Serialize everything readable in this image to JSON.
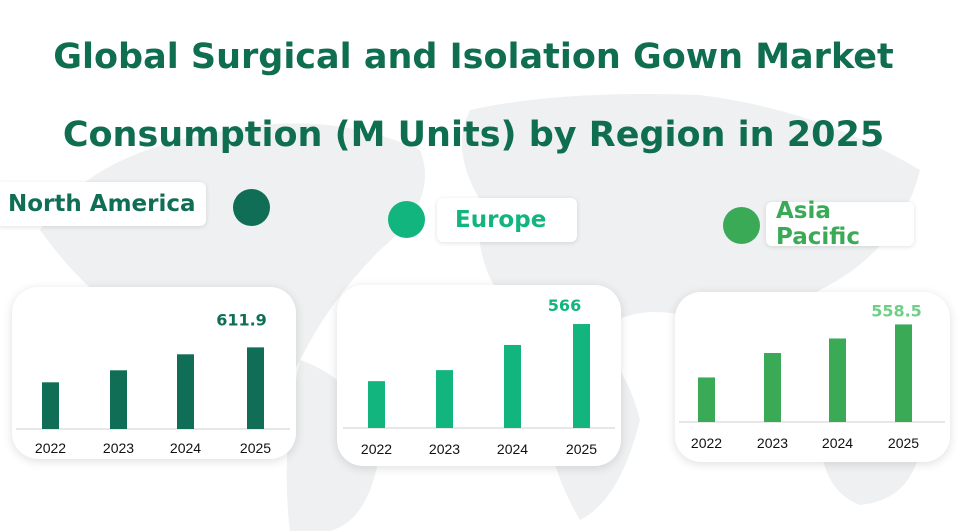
{
  "title": {
    "line1": "Global Surgical and Isolation Gown Market",
    "line2": "Consumption (M Units) by Region in 2025"
  },
  "colors": {
    "title": "#0f6e4f",
    "north_america": "#0f6e55",
    "europe": "#11b57d",
    "asia_pacific": "#3aaa57",
    "asia_pacific_value": "#6fcf86"
  },
  "regions": [
    {
      "key": "north_america",
      "label": "North America"
    },
    {
      "key": "europe",
      "label": "Europe"
    },
    {
      "key": "asia_pacific",
      "label": "Asia Pacific"
    }
  ],
  "chart_data": [
    {
      "type": "bar",
      "title": "North America",
      "categories": [
        "2022",
        "2023",
        "2024",
        "2025"
      ],
      "values": [
        350,
        440,
        560,
        611.9
      ],
      "labeled_value": "611.9",
      "color": "#0f6e55"
    },
    {
      "type": "bar",
      "title": "Europe",
      "categories": [
        "2022",
        "2023",
        "2024",
        "2025"
      ],
      "values": [
        255,
        315,
        452,
        566
      ],
      "labeled_value": "566",
      "color": "#11b57d"
    },
    {
      "type": "bar",
      "title": "Asia Pacific",
      "categories": [
        "2022",
        "2023",
        "2024",
        "2025"
      ],
      "values": [
        255,
        395,
        478,
        558.5
      ],
      "labeled_value": "558.5",
      "color": "#3aaa57"
    }
  ]
}
